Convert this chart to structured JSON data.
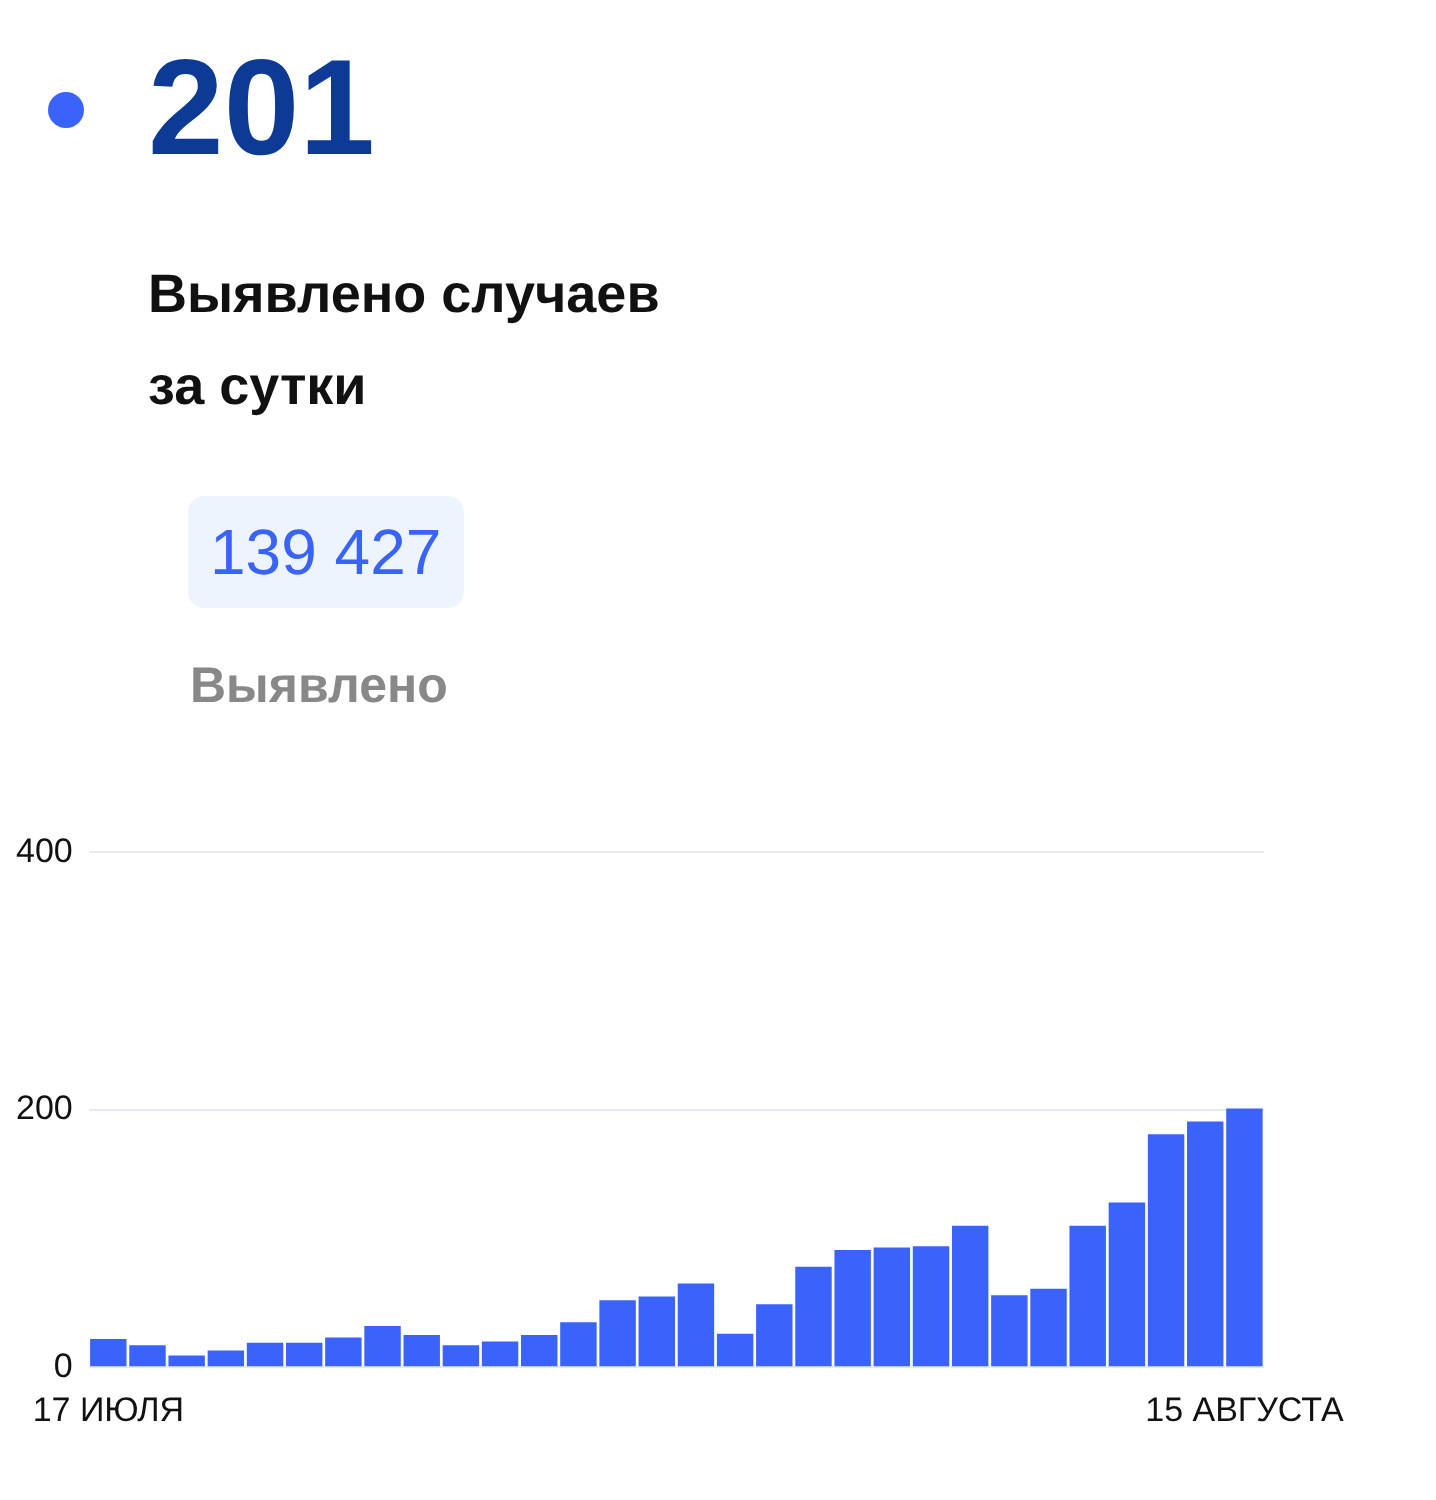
{
  "chart_data": {
    "type": "bar",
    "title": "201",
    "subtitle": "Выявлено случаев за сутки",
    "annotations": [
      "139 427",
      "Выявлено"
    ],
    "categories": [
      "17 ИЮЛЯ",
      null,
      null,
      null,
      null,
      null,
      null,
      null,
      null,
      null,
      null,
      null,
      null,
      null,
      null,
      null,
      null,
      null,
      null,
      null,
      null,
      null,
      null,
      null,
      null,
      null,
      null,
      null,
      null,
      "15 АВГУСТА"
    ],
    "values": [
      22,
      17,
      9,
      13,
      19,
      19,
      23,
      32,
      25,
      17,
      20,
      25,
      35,
      52,
      55,
      65,
      26,
      49,
      78,
      91,
      93,
      94,
      110,
      56,
      61,
      110,
      128,
      181,
      191,
      201
    ],
    "color": "#3a63fb",
    "ylim": [
      0,
      400
    ],
    "yticks": [
      0,
      200,
      400
    ],
    "grid": "y",
    "legend": false
  }
}
